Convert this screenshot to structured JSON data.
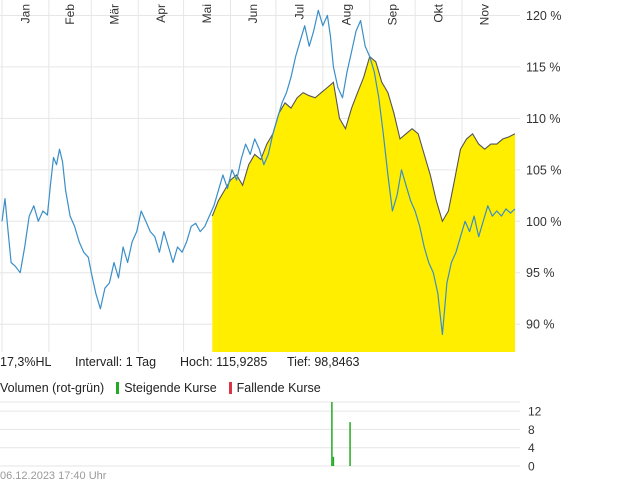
{
  "chart_data": [
    {
      "type": "line",
      "months": [
        "Jan",
        "Feb",
        "Mär",
        "Apr",
        "Mai",
        "Jun",
        "Jul",
        "Aug",
        "Sep",
        "Okt",
        "Nov"
      ],
      "y_ticks": [
        "120 %",
        "115 %",
        "110 %",
        "105 %",
        "100 %",
        "95 %",
        "90 %"
      ],
      "y_tick_values": [
        120,
        115,
        110,
        105,
        100,
        95,
        90
      ],
      "ylim": [
        87.3,
        121.5
      ],
      "x": [
        "2023-01-01",
        "2023-12-06"
      ],
      "series": [
        {
          "color": "#3a8fc8",
          "points": [
            [
              "2023-01-01",
              100.0
            ],
            [
              "2023-01-03",
              102.2
            ],
            [
              "2023-01-05",
              99.0
            ],
            [
              "2023-01-07",
              96.0
            ],
            [
              "2023-01-10",
              95.6
            ],
            [
              "2023-01-13",
              95.0
            ],
            [
              "2023-01-16",
              97.5
            ],
            [
              "2023-01-19",
              100.5
            ],
            [
              "2023-01-22",
              101.5
            ],
            [
              "2023-01-25",
              100.0
            ],
            [
              "2023-01-28",
              101.0
            ],
            [
              "2023-01-31",
              100.6
            ],
            [
              "2023-02-02",
              103.5
            ],
            [
              "2023-02-04",
              106.2
            ],
            [
              "2023-02-06",
              105.5
            ],
            [
              "2023-02-08",
              107.0
            ],
            [
              "2023-02-10",
              105.8
            ],
            [
              "2023-02-12",
              103.0
            ],
            [
              "2023-02-15",
              100.5
            ],
            [
              "2023-02-18",
              99.5
            ],
            [
              "2023-02-21",
              98.0
            ],
            [
              "2023-02-24",
              97.0
            ],
            [
              "2023-02-27",
              96.5
            ],
            [
              "2023-03-01",
              95.0
            ],
            [
              "2023-03-04",
              93.0
            ],
            [
              "2023-03-07",
              91.5
            ],
            [
              "2023-03-10",
              93.5
            ],
            [
              "2023-03-13",
              94.0
            ],
            [
              "2023-03-16",
              96.0
            ],
            [
              "2023-03-19",
              94.5
            ],
            [
              "2023-03-22",
              97.5
            ],
            [
              "2023-03-25",
              96.0
            ],
            [
              "2023-03-28",
              98.0
            ],
            [
              "2023-03-31",
              99.0
            ],
            [
              "2023-04-03",
              101.0
            ],
            [
              "2023-04-06",
              100.0
            ],
            [
              "2023-04-09",
              99.0
            ],
            [
              "2023-04-12",
              98.5
            ],
            [
              "2023-04-15",
              97.0
            ],
            [
              "2023-04-18",
              99.0
            ],
            [
              "2023-04-21",
              97.5
            ],
            [
              "2023-04-24",
              96.0
            ],
            [
              "2023-04-27",
              97.5
            ],
            [
              "2023-04-30",
              97.0
            ],
            [
              "2023-05-03",
              98.0
            ],
            [
              "2023-05-06",
              99.5
            ],
            [
              "2023-05-09",
              99.8
            ],
            [
              "2023-05-12",
              99.0
            ],
            [
              "2023-05-15",
              99.5
            ],
            [
              "2023-05-18",
              100.5
            ],
            [
              "2023-05-21",
              101.5
            ],
            [
              "2023-05-24",
              103.0
            ],
            [
              "2023-05-27",
              104.5
            ],
            [
              "2023-05-30",
              103.2
            ],
            [
              "2023-06-02",
              105.0
            ],
            [
              "2023-06-05",
              104.0
            ],
            [
              "2023-06-08",
              106.0
            ],
            [
              "2023-06-11",
              107.5
            ],
            [
              "2023-06-14",
              106.5
            ],
            [
              "2023-06-17",
              108.0
            ],
            [
              "2023-06-20",
              107.0
            ],
            [
              "2023-06-23",
              105.5
            ],
            [
              "2023-06-26",
              106.5
            ],
            [
              "2023-06-29",
              108.5
            ],
            [
              "2023-07-02",
              110.0
            ],
            [
              "2023-07-05",
              111.5
            ],
            [
              "2023-07-08",
              112.5
            ],
            [
              "2023-07-11",
              114.0
            ],
            [
              "2023-07-14",
              116.0
            ],
            [
              "2023-07-17",
              117.5
            ],
            [
              "2023-07-20",
              119.0
            ],
            [
              "2023-07-23",
              117.0
            ],
            [
              "2023-07-26",
              118.5
            ],
            [
              "2023-07-29",
              120.5
            ],
            [
              "2023-08-01",
              119.0
            ],
            [
              "2023-08-04",
              120.0
            ],
            [
              "2023-08-06",
              118.0
            ],
            [
              "2023-08-08",
              115.0
            ],
            [
              "2023-08-11",
              113.0
            ],
            [
              "2023-08-14",
              112.0
            ],
            [
              "2023-08-17",
              114.5
            ],
            [
              "2023-08-20",
              116.5
            ],
            [
              "2023-08-23",
              118.5
            ],
            [
              "2023-08-26",
              119.5
            ],
            [
              "2023-08-29",
              117.0
            ],
            [
              "2023-09-01",
              116.0
            ],
            [
              "2023-09-04",
              114.5
            ],
            [
              "2023-09-07",
              112.0
            ],
            [
              "2023-09-10",
              108.5
            ],
            [
              "2023-09-13",
              104.5
            ],
            [
              "2023-09-16",
              101.0
            ],
            [
              "2023-09-19",
              102.5
            ],
            [
              "2023-09-22",
              105.0
            ],
            [
              "2023-09-25",
              103.5
            ],
            [
              "2023-09-28",
              102.0
            ],
            [
              "2023-10-01",
              101.0
            ],
            [
              "2023-10-04",
              99.5
            ],
            [
              "2023-10-07",
              97.5
            ],
            [
              "2023-10-10",
              96.0
            ],
            [
              "2023-10-13",
              95.0
            ],
            [
              "2023-10-16",
              93.0
            ],
            [
              "2023-10-19",
              89.0
            ],
            [
              "2023-10-22",
              94.0
            ],
            [
              "2023-10-25",
              96.0
            ],
            [
              "2023-10-28",
              97.0
            ],
            [
              "2023-10-31",
              98.5
            ],
            [
              "2023-11-03",
              100.0
            ],
            [
              "2023-11-06",
              99.0
            ],
            [
              "2023-11-09",
              100.5
            ],
            [
              "2023-11-12",
              98.5
            ],
            [
              "2023-11-15",
              100.0
            ],
            [
              "2023-11-18",
              101.5
            ],
            [
              "2023-11-21",
              100.5
            ],
            [
              "2023-11-24",
              101.0
            ],
            [
              "2023-11-27",
              100.5
            ],
            [
              "2023-11-30",
              101.2
            ],
            [
              "2023-12-03",
              100.8
            ],
            [
              "2023-12-06",
              101.2
            ]
          ]
        },
        {
          "color": "#555555",
          "fill": "#ffee00",
          "points": [
            [
              "2023-05-20",
              100.5
            ],
            [
              "2023-05-24",
              102.0
            ],
            [
              "2023-05-28",
              103.0
            ],
            [
              "2023-06-01",
              104.0
            ],
            [
              "2023-06-05",
              104.5
            ],
            [
              "2023-06-09",
              103.5
            ],
            [
              "2023-06-13",
              105.5
            ],
            [
              "2023-06-17",
              106.5
            ],
            [
              "2023-06-21",
              106.0
            ],
            [
              "2023-06-25",
              107.5
            ],
            [
              "2023-06-29",
              108.5
            ],
            [
              "2023-07-03",
              110.5
            ],
            [
              "2023-07-07",
              111.5
            ],
            [
              "2023-07-11",
              111.0
            ],
            [
              "2023-07-15",
              112.0
            ],
            [
              "2023-07-19",
              112.5
            ],
            [
              "2023-07-23",
              112.2
            ],
            [
              "2023-07-27",
              112.0
            ],
            [
              "2023-07-31",
              112.5
            ],
            [
              "2023-08-04",
              113.0
            ],
            [
              "2023-08-08",
              113.5
            ],
            [
              "2023-08-12",
              110.0
            ],
            [
              "2023-08-16",
              109.0
            ],
            [
              "2023-08-20",
              111.0
            ],
            [
              "2023-08-24",
              112.5
            ],
            [
              "2023-08-28",
              114.0
            ],
            [
              "2023-09-01",
              116.0
            ],
            [
              "2023-09-05",
              115.5
            ],
            [
              "2023-09-09",
              113.5
            ],
            [
              "2023-09-13",
              112.5
            ],
            [
              "2023-09-17",
              110.5
            ],
            [
              "2023-09-21",
              108.0
            ],
            [
              "2023-09-25",
              108.5
            ],
            [
              "2023-09-29",
              109.0
            ],
            [
              "2023-10-03",
              108.5
            ],
            [
              "2023-10-07",
              106.5
            ],
            [
              "2023-10-11",
              104.5
            ],
            [
              "2023-10-15",
              102.0
            ],
            [
              "2023-10-19",
              100.0
            ],
            [
              "2023-10-23",
              101.0
            ],
            [
              "2023-10-27",
              104.0
            ],
            [
              "2023-10-31",
              107.0
            ],
            [
              "2023-11-04",
              108.0
            ],
            [
              "2023-11-08",
              108.5
            ],
            [
              "2023-11-12",
              107.5
            ],
            [
              "2023-11-16",
              107.0
            ],
            [
              "2023-11-20",
              107.5
            ],
            [
              "2023-11-24",
              107.5
            ],
            [
              "2023-11-28",
              108.0
            ],
            [
              "2023-12-02",
              108.2
            ],
            [
              "2023-12-06",
              108.5
            ]
          ]
        }
      ]
    },
    {
      "type": "bar",
      "title": "Volumen (rot-grün)",
      "legend": [
        "Steigende Kurse",
        "Fallende Kurse"
      ],
      "legend_colors": [
        "#22aa22",
        "#dd3344"
      ],
      "y_ticks": [
        "12",
        "8",
        "4",
        "0"
      ],
      "y_tick_values": [
        12,
        8,
        4,
        0
      ],
      "ylim": [
        0,
        14
      ],
      "bars": [
        {
          "date": "2023-08-07",
          "value": 14.0,
          "color": "#22aa22"
        },
        {
          "date": "2023-08-08",
          "value": 2.0,
          "color": "#22aa22"
        },
        {
          "date": "2023-08-19",
          "value": 9.6,
          "color": "#22aa22"
        }
      ]
    }
  ],
  "stats": {
    "range": "17,3%HL",
    "interval": "Intervall: 1 Tag",
    "high": "Hoch: 115,9285",
    "low": "Tief: 98,8463"
  },
  "volume_legend": {
    "title": "Volumen (rot-grün)",
    "up": "Steigende Kurse",
    "down": "Fallende Kurse"
  },
  "footer": "06.12.2023 17:40 Uhr"
}
